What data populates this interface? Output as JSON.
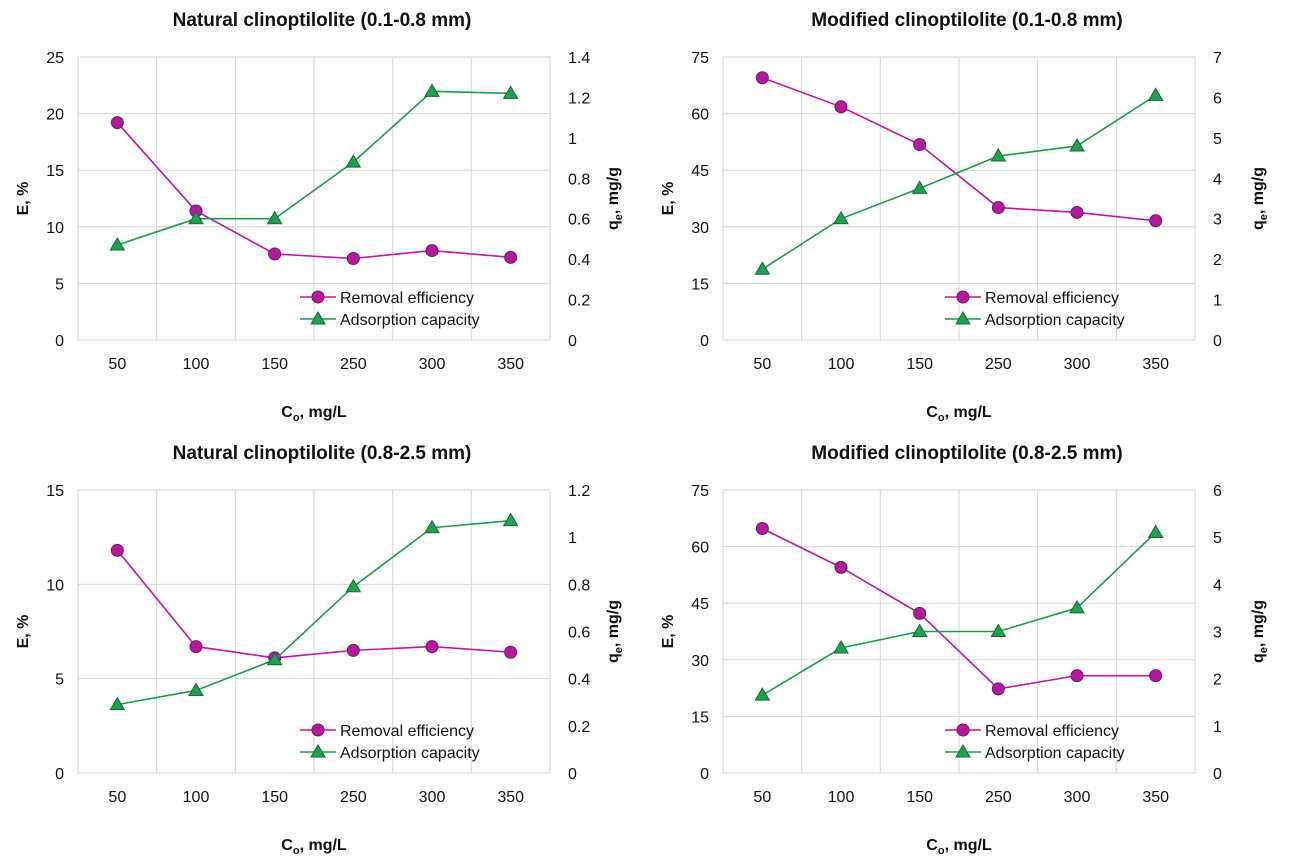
{
  "chart_data": [
    {
      "type": "line",
      "title": "Natural clinoptilolite (0.1-0.8 mm)",
      "xlabel_main": "C",
      "xlabel_sub": "o",
      "xlabel_rest": ", mg/L",
      "ylabel": "E, %",
      "y2label_main": "q",
      "y2label_sub": "e",
      "y2label_rest": ", mg/g",
      "categories": [
        "50",
        "100",
        "150",
        "250",
        "300",
        "350"
      ],
      "ylim": [
        0,
        25
      ],
      "yticks": [
        "0",
        "5",
        "10",
        "15",
        "20",
        "25"
      ],
      "y2lim": [
        0,
        1.4
      ],
      "y2ticks": [
        "0",
        "0.2",
        "0.4",
        "0.6",
        "0.8",
        "1",
        "1.2",
        "1.4"
      ],
      "grid": true,
      "legend_position": "bottom-right",
      "series": [
        {
          "name": "Removal efficiency",
          "axis": "left",
          "marker": "circle",
          "color": "#c0179e",
          "values": [
            19.2,
            11.4,
            7.6,
            7.2,
            7.9,
            7.3
          ]
        },
        {
          "name": "Adsorption capacity",
          "axis": "right",
          "marker": "triangle",
          "color": "#1f9a4a",
          "values": [
            0.47,
            0.6,
            0.6,
            0.88,
            1.23,
            1.22
          ]
        }
      ]
    },
    {
      "type": "line",
      "title": "Modified clinoptilolite (0.1-0.8 mm)",
      "xlabel_main": "C",
      "xlabel_sub": "o",
      "xlabel_rest": ", mg/L",
      "ylabel": "E, %",
      "y2label_main": "q",
      "y2label_sub": "e",
      "y2label_rest": ", mg/g",
      "categories": [
        "50",
        "100",
        "150",
        "250",
        "300",
        "350"
      ],
      "ylim": [
        0,
        75
      ],
      "yticks": [
        "0",
        "15",
        "30",
        "45",
        "60",
        "75"
      ],
      "y2lim": [
        0,
        7
      ],
      "y2ticks": [
        "0",
        "1",
        "2",
        "3",
        "4",
        "5",
        "6",
        "7"
      ],
      "grid": true,
      "legend_position": "bottom-right",
      "series": [
        {
          "name": "Removal efficiency",
          "axis": "left",
          "marker": "circle",
          "color": "#c0179e",
          "values": [
            69.5,
            61.8,
            51.8,
            35.1,
            33.8,
            31.6
          ]
        },
        {
          "name": "Adsorption capacity",
          "axis": "right",
          "marker": "triangle",
          "color": "#1f9a4a",
          "values": [
            1.75,
            3.0,
            3.75,
            4.55,
            4.8,
            6.05
          ]
        }
      ]
    },
    {
      "type": "line",
      "title": "Natural clinoptilolite (0.8-2.5 mm)",
      "xlabel_main": "C",
      "xlabel_sub": "o",
      "xlabel_rest": ", mg/L",
      "ylabel": "E, %",
      "y2label_main": "q",
      "y2label_sub": "e",
      "y2label_rest": ", mg/g",
      "categories": [
        "50",
        "100",
        "150",
        "250",
        "300",
        "350"
      ],
      "ylim": [
        0,
        15
      ],
      "yticks": [
        "0",
        "5",
        "10",
        "15"
      ],
      "y2lim": [
        0,
        1.2
      ],
      "y2ticks": [
        "0",
        "0.2",
        "0.4",
        "0.6",
        "0.8",
        "1",
        "1.2"
      ],
      "grid": true,
      "legend_position": "bottom-right",
      "series": [
        {
          "name": "Removal efficiency",
          "axis": "left",
          "marker": "circle",
          "color": "#c0179e",
          "values": [
            11.8,
            6.7,
            6.1,
            6.5,
            6.7,
            6.4
          ]
        },
        {
          "name": "Adsorption capacity",
          "axis": "right",
          "marker": "triangle",
          "color": "#1f9a4a",
          "values": [
            0.29,
            0.35,
            0.48,
            0.79,
            1.04,
            1.07
          ]
        }
      ]
    },
    {
      "type": "line",
      "title": "Modified clinoptilolite (0.8-2.5 mm)",
      "xlabel_main": "C",
      "xlabel_sub": "o",
      "xlabel_rest": ", mg/L",
      "ylabel": "E, %",
      "y2label_main": "q",
      "y2label_sub": "e",
      "y2label_rest": ", mg/g",
      "categories": [
        "50",
        "100",
        "150",
        "250",
        "300",
        "350"
      ],
      "ylim": [
        0,
        75
      ],
      "yticks": [
        "0",
        "15",
        "30",
        "45",
        "60",
        "75"
      ],
      "y2lim": [
        0,
        6
      ],
      "y2ticks": [
        "0",
        "1",
        "2",
        "3",
        "4",
        "5",
        "6"
      ],
      "grid": true,
      "legend_position": "bottom-right",
      "series": [
        {
          "name": "Removal efficiency",
          "axis": "left",
          "marker": "circle",
          "color": "#c0179e",
          "values": [
            64.8,
            54.5,
            42.3,
            22.3,
            25.8,
            25.8
          ]
        },
        {
          "name": "Adsorption capacity",
          "axis": "right",
          "marker": "triangle",
          "color": "#1f9a4a",
          "values": [
            1.65,
            2.65,
            3.0,
            3.0,
            3.5,
            5.1
          ]
        }
      ]
    }
  ]
}
